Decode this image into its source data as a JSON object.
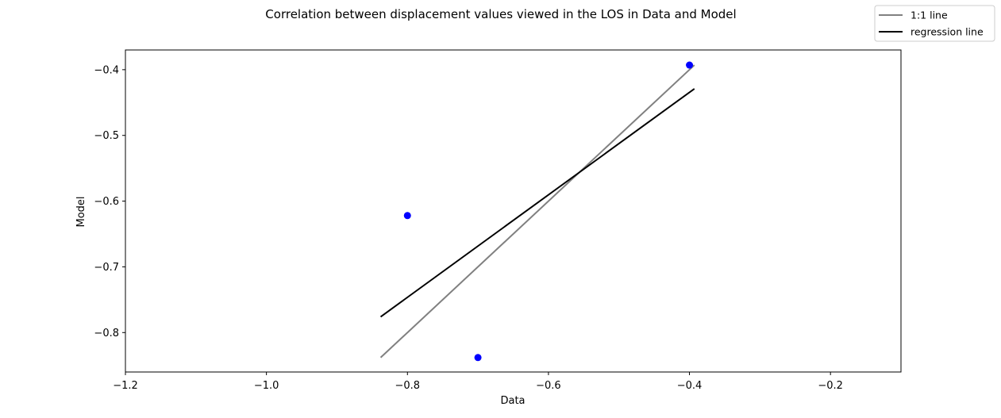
{
  "chart_data": {
    "type": "scatter",
    "title": "Correlation between displacement values viewed in the LOS in Data and Model",
    "xlabel": "Data",
    "ylabel": "Model",
    "xlim": [
      -1.2,
      -0.1
    ],
    "ylim": [
      -0.86,
      -0.37
    ],
    "xticks": [
      {
        "value": -1.2,
        "label": "−1.2"
      },
      {
        "value": -1.0,
        "label": "−1.0"
      },
      {
        "value": -0.8,
        "label": "−0.8"
      },
      {
        "value": -0.6,
        "label": "−0.6"
      },
      {
        "value": -0.4,
        "label": "−0.4"
      },
      {
        "value": -0.2,
        "label": "−0.2"
      }
    ],
    "yticks": [
      {
        "value": -0.8,
        "label": "−0.8"
      },
      {
        "value": -0.7,
        "label": "−0.7"
      },
      {
        "value": -0.6,
        "label": "−0.6"
      },
      {
        "value": -0.5,
        "label": "−0.5"
      },
      {
        "value": -0.4,
        "label": "−0.4"
      }
    ],
    "points": [
      {
        "x": -0.8,
        "y": -0.622
      },
      {
        "x": -0.7,
        "y": -0.838
      },
      {
        "x": -0.4,
        "y": -0.393
      }
    ],
    "lines": [
      {
        "name": "1:1 line",
        "color": "#808080",
        "x": [
          -0.838,
          -0.393
        ],
        "y": [
          -0.838,
          -0.393
        ]
      },
      {
        "name": "regression line",
        "color": "#000000",
        "x": [
          -0.838,
          -0.393
        ],
        "y": [
          -0.776,
          -0.429
        ]
      }
    ],
    "point_color": "#0000ff",
    "legend_placement": "top-right",
    "grid": false
  }
}
